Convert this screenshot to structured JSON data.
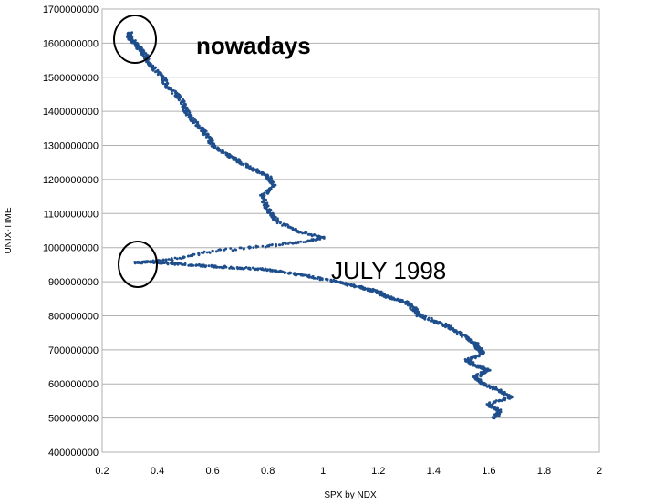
{
  "chart_data": {
    "type": "scatter",
    "xlabel": "SPX by NDX",
    "ylabel": "UNIX-TIME",
    "xlim": [
      0.2,
      2
    ],
    "ylim": [
      400000000,
      1700000000
    ],
    "x_ticks": [
      0.2,
      0.4,
      0.6,
      0.8,
      1,
      1.2,
      1.4,
      1.6,
      1.8,
      2
    ],
    "x_tick_labels": [
      "0.2",
      "0.4",
      "0.6",
      "0.8",
      "1",
      "1.2",
      "1.4",
      "1.6",
      "1.8",
      "2"
    ],
    "y_ticks": [
      400000000,
      500000000,
      600000000,
      700000000,
      800000000,
      900000000,
      1000000000,
      1100000000,
      1200000000,
      1300000000,
      1400000000,
      1500000000,
      1600000000,
      1700000000
    ],
    "y_tick_labels": [
      "400000000",
      "500000000",
      "600000000",
      "700000000",
      "800000000",
      "900000000",
      "1000000000",
      "1100000000",
      "1200000000",
      "1300000000",
      "1400000000",
      "1500000000",
      "1600000000",
      "1700000000"
    ],
    "grid": "horizontal",
    "marker_color": "#1f4e8c",
    "series": [
      {
        "x": [
          1.62,
          1.64,
          1.6,
          1.68,
          1.64,
          1.58,
          1.55,
          1.6,
          1.55,
          1.52,
          1.58,
          1.56,
          1.55,
          1.5,
          1.45,
          1.4,
          1.35,
          1.33,
          1.3,
          1.25,
          1.22,
          1.2,
          1.15,
          1.1,
          1.05,
          0.95,
          0.88,
          0.8,
          0.7,
          0.6,
          0.5,
          0.42,
          0.38,
          0.32,
          0.45,
          0.6,
          0.8,
          0.95,
          1.0,
          0.9,
          0.83,
          0.8,
          0.78,
          0.82,
          0.8,
          0.75,
          0.7,
          0.66,
          0.6,
          0.58,
          0.56,
          0.52,
          0.5,
          0.48,
          0.44,
          0.42,
          0.38,
          0.36,
          0.34,
          0.32,
          0.3,
          0.3
        ],
        "y": [
          500000000,
          520000000,
          540000000,
          560000000,
          580000000,
          600000000,
          620000000,
          640000000,
          655000000,
          670000000,
          690000000,
          705000000,
          720000000,
          745000000,
          770000000,
          785000000,
          800000000,
          820000000,
          840000000,
          850000000,
          860000000,
          870000000,
          880000000,
          890000000,
          900000000,
          915000000,
          925000000,
          935000000,
          940000000,
          945000000,
          950000000,
          955000000,
          958000000,
          955000000,
          965000000,
          990000000,
          1005000000,
          1020000000,
          1030000000,
          1050000000,
          1080000000,
          1110000000,
          1150000000,
          1180000000,
          1210000000,
          1230000000,
          1250000000,
          1270000000,
          1300000000,
          1330000000,
          1350000000,
          1380000000,
          1410000000,
          1440000000,
          1470000000,
          1500000000,
          1530000000,
          1560000000,
          1580000000,
          1600000000,
          1615000000,
          1630000000
        ]
      }
    ],
    "annotations": [
      {
        "text": "nowadays",
        "x": 0.32,
        "y": 1615000000
      },
      {
        "text": "JULY 1998",
        "x": 0.32,
        "y": 955000000
      }
    ]
  }
}
